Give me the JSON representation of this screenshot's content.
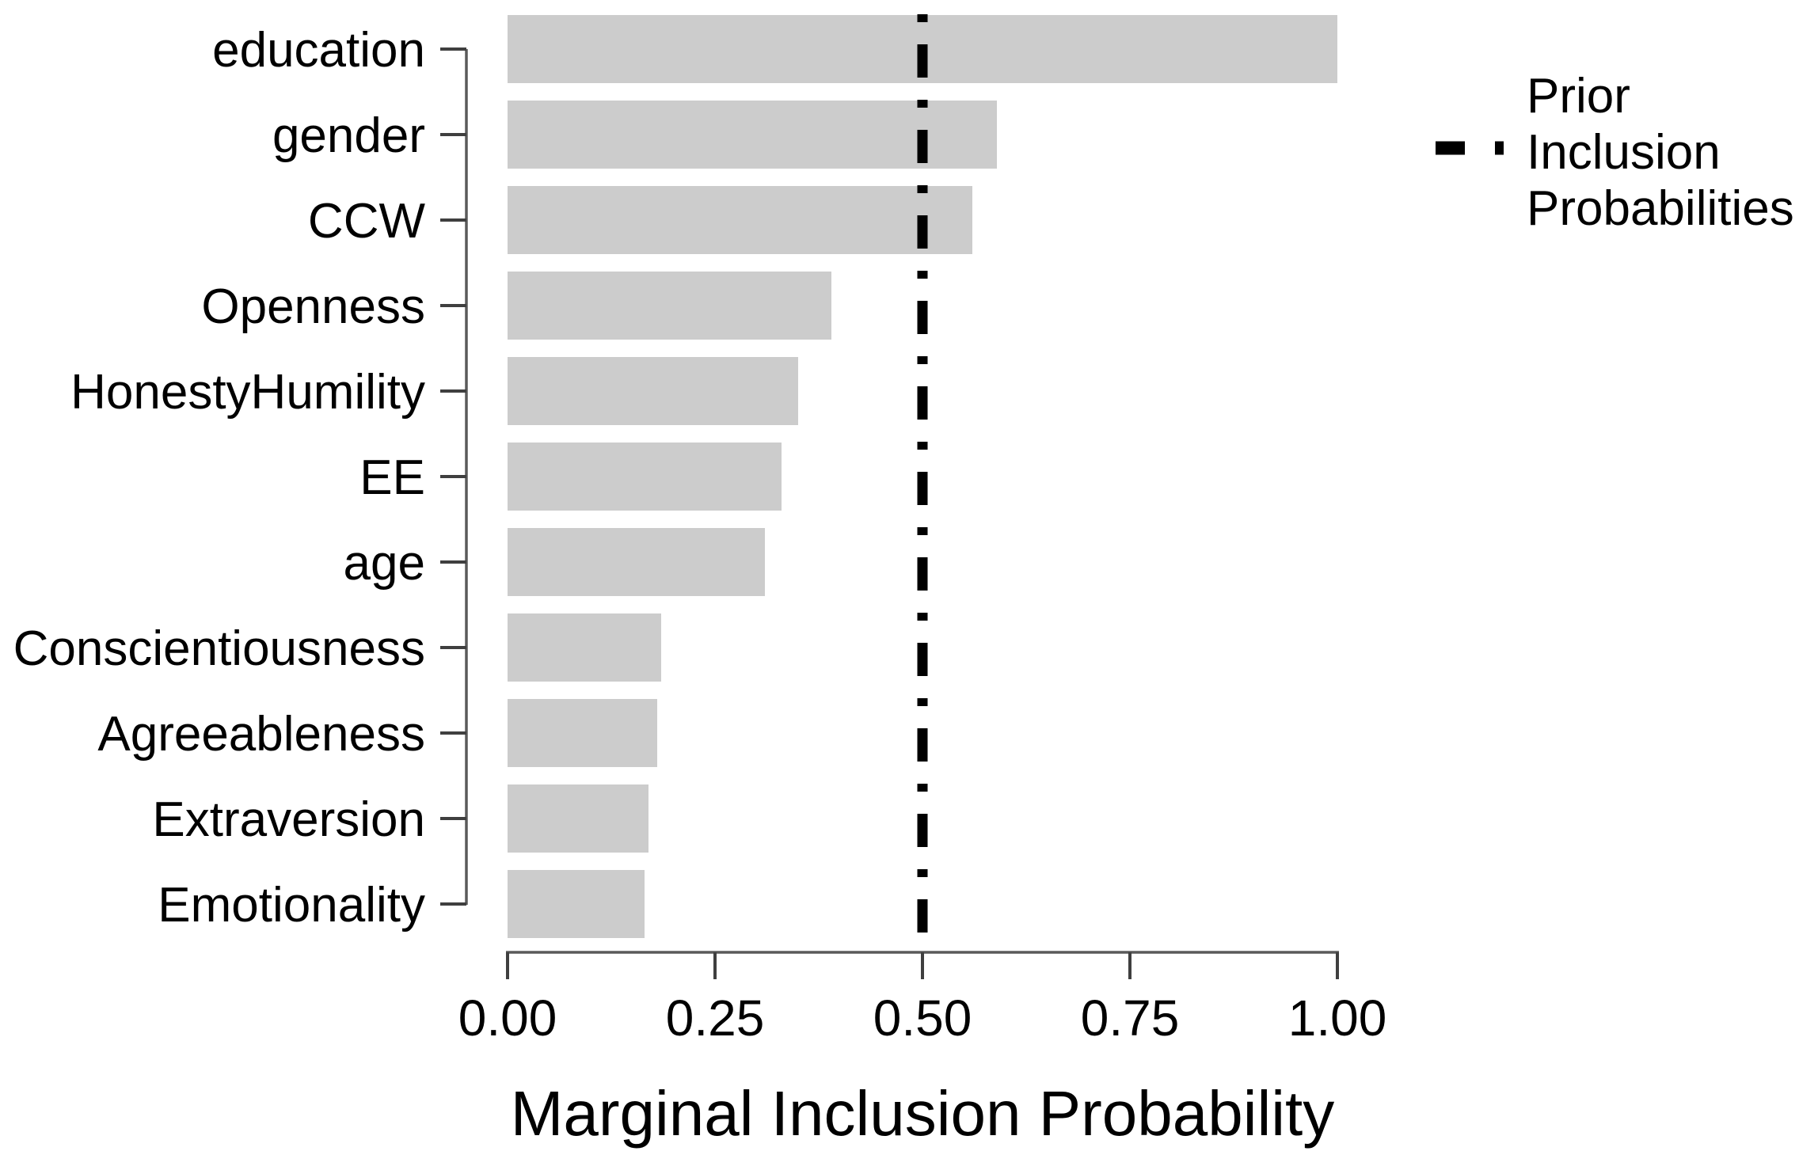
{
  "colors": {
    "background": "#ffffff",
    "bar_fill": "#cccccc",
    "axis": "#5a5a5a",
    "tick": "#3f3f3f",
    "text": "#000000",
    "reference_line": "#000000"
  },
  "chart_data": {
    "type": "bar",
    "orientation": "horizontal",
    "title": "",
    "xlabel": "Marginal Inclusion Probability",
    "ylabel": "",
    "grid": false,
    "xlim": [
      0,
      1
    ],
    "categories": [
      "education",
      "gender",
      "CCW",
      "Openness",
      "HonestyHumility",
      "EE",
      "age",
      "Conscientiousness",
      "Agreeableness",
      "Extraversion",
      "Emotionality"
    ],
    "values": [
      1.0,
      0.59,
      0.56,
      0.39,
      0.35,
      0.33,
      0.31,
      0.185,
      0.18,
      0.17,
      0.165
    ],
    "x_ticks": [
      "0.00",
      "0.25",
      "0.50",
      "0.75",
      "1.00"
    ],
    "x_tick_values": [
      0,
      0.25,
      0.5,
      0.75,
      1.0
    ],
    "reference_line": {
      "value": 0.5,
      "style": "dotdash",
      "meaning": "Prior Inclusion Probabilities"
    },
    "legend": {
      "position": "right",
      "label": "Prior Inclusion Probabilities",
      "lines": [
        "Prior",
        "Inclusion",
        "Probabilities"
      ],
      "key_style": "dotdash"
    }
  }
}
